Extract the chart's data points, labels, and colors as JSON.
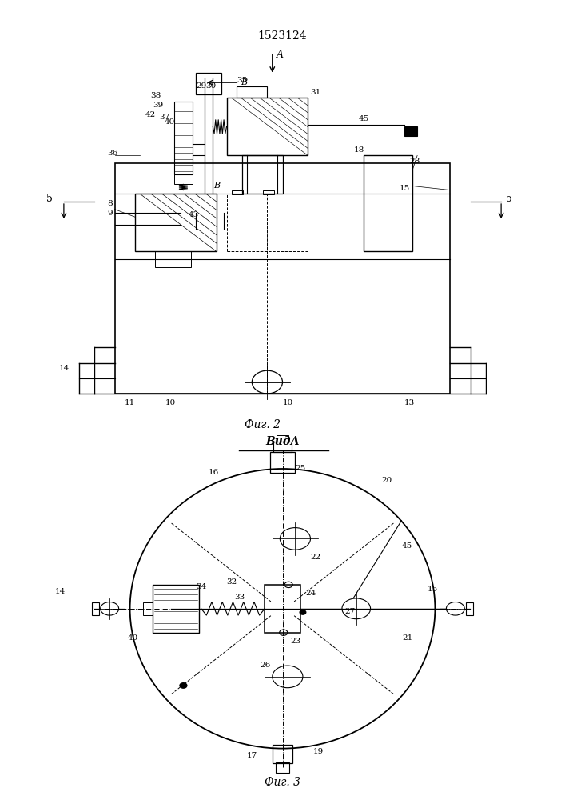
{
  "title": "1523124",
  "fig2_caption": "Фиг. 2",
  "fig3_caption": "Фиг. 3",
  "vid_a_label": "ВидА",
  "background_color": "#ffffff",
  "line_color": "#000000"
}
